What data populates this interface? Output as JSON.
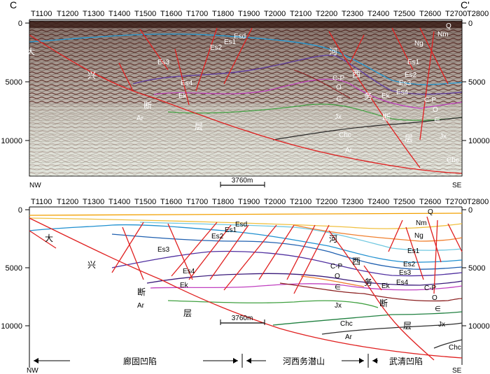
{
  "profile": {
    "start_label": "C",
    "end_label": "C'",
    "left_dir": "NW",
    "right_dir": "SE"
  },
  "trace_ticks": [
    "T1100",
    "T1200",
    "T1300",
    "T1400",
    "T1500",
    "T1600",
    "T1700",
    "T1800",
    "T1900",
    "T2000",
    "T2100",
    "T2200",
    "T2300",
    "T2400",
    "T2500",
    "T2600",
    "T2700",
    "T2800"
  ],
  "depth_ticks": [
    "0",
    "5000",
    "10000"
  ],
  "scale_bar": "3760m",
  "fault_labels": [
    {
      "id": "da",
      "text": "大"
    },
    {
      "id": "xing",
      "text": "兴"
    },
    {
      "id": "duan1",
      "text": "断"
    },
    {
      "id": "ceng1",
      "text": "层"
    },
    {
      "id": "he",
      "text": "河"
    },
    {
      "id": "xi",
      "text": "西"
    },
    {
      "id": "wu",
      "text": "务"
    },
    {
      "id": "duan2",
      "text": "断"
    },
    {
      "id": "ceng2",
      "text": "层"
    }
  ],
  "strata_labels": [
    {
      "id": "esd",
      "text": "Esd"
    },
    {
      "id": "es1a",
      "text": "Es1"
    },
    {
      "id": "es2a",
      "text": "Es2"
    },
    {
      "id": "es3a",
      "text": "Es3"
    },
    {
      "id": "es4a",
      "text": "Es4"
    },
    {
      "id": "eka",
      "text": "Ek"
    },
    {
      "id": "ara",
      "text": "Ar"
    },
    {
      "id": "cpa",
      "text": "C-P"
    },
    {
      "id": "oa",
      "text": "O"
    },
    {
      "id": "ea",
      "text": "∈"
    },
    {
      "id": "jxa",
      "text": "Jx"
    },
    {
      "id": "chca",
      "text": "Chc"
    },
    {
      "id": "arb",
      "text": "Ar"
    },
    {
      "id": "q",
      "text": "Q"
    },
    {
      "id": "nm",
      "text": "Nm"
    },
    {
      "id": "ng",
      "text": "Ng"
    },
    {
      "id": "es1b",
      "text": "Es1"
    },
    {
      "id": "es2b",
      "text": "Es2"
    },
    {
      "id": "es3b",
      "text": "Es3"
    },
    {
      "id": "es4b",
      "text": "Es4"
    },
    {
      "id": "ekb",
      "text": "Ek"
    },
    {
      "id": "cpb",
      "text": "C-P"
    },
    {
      "id": "ob",
      "text": "O"
    },
    {
      "id": "eb",
      "text": "∈"
    },
    {
      "id": "jxb",
      "text": "Jx"
    },
    {
      "id": "chcb",
      "text": "Chc"
    }
  ],
  "regions": [
    "廊固凹陷",
    "河西务潜山",
    "武清凹陷"
  ],
  "colors": {
    "fault": "#e02020",
    "Q": "#f2a000",
    "Nm": "#f0c040",
    "Ng": "#f08030",
    "Esd": "#70c8e0",
    "Es1": "#3aa0d8",
    "Es2": "#2070c0",
    "Es3": "#6040a0",
    "Es4": "#402080",
    "Ek": "#c040c0",
    "Ar_top": "#40a040",
    "Jx": "#208040",
    "Chc": "#304030",
    "O": "#8b2020"
  }
}
